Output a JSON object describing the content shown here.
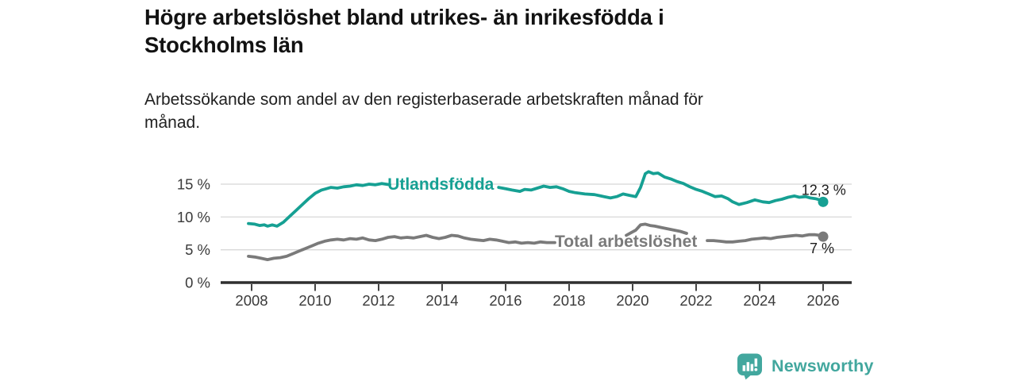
{
  "header": {
    "title": "Högre arbetslöshet bland utrikes- än inrikesfödda i\nStockholms län",
    "subtitle": "Arbetssökande som andel av den registerbaserade arbetskraften månad för\nmånad."
  },
  "footer": {
    "brand": "Newsworthy",
    "logo_icon": "bar-chart-speech-bubble-icon"
  },
  "colors": {
    "teal_series": "#16A093",
    "gray_series": "#7A7A7A",
    "logo_teal": "#42A79E",
    "gridline": "#D8D8D8",
    "axis": "#2F2F2F",
    "tick_text": "#3A3A3A",
    "end_label_text": "#1C1C1C"
  },
  "chart_data": {
    "type": "line",
    "title": "Högre arbetslöshet bland utrikes- än inrikesfödda i Stockholms län",
    "subtitle": "Arbetssökande som andel av den registerbaserade arbetskraften månad för månad.",
    "unit": "%",
    "grid": true,
    "legend_position": "inline-line-labels",
    "xlim": [
      2007.0,
      2026.9
    ],
    "ylim": [
      0,
      17.5
    ],
    "y_ticks": [
      {
        "value": 0,
        "label": "0 %"
      },
      {
        "value": 5,
        "label": "5 %"
      },
      {
        "value": 10,
        "label": "10 %"
      },
      {
        "value": 15,
        "label": "15 %"
      }
    ],
    "x_ticks": [
      {
        "value": 2008,
        "label": "2008"
      },
      {
        "value": 2010,
        "label": "2010"
      },
      {
        "value": 2012,
        "label": "2012"
      },
      {
        "value": 2014,
        "label": "2014"
      },
      {
        "value": 2016,
        "label": "2016"
      },
      {
        "value": 2018,
        "label": "2018"
      },
      {
        "value": 2020,
        "label": "2020"
      },
      {
        "value": 2022,
        "label": "2022"
      },
      {
        "value": 2024,
        "label": "2024"
      },
      {
        "value": 2026,
        "label": "2026"
      }
    ],
    "series": [
      {
        "id": "utlandsfodda",
        "name": "Utlandsfödda",
        "color": "#16A093",
        "line_label": {
          "text": "Utlandsfödda",
          "x": 2012.28,
          "value": 15.05
        },
        "end_dot": {
          "x": 2026.0,
          "value": 12.3
        },
        "end_label": {
          "text": "12,3 %",
          "x": 2026.72,
          "value": 14.1
        },
        "segments": [
          [
            [
              2007.9,
              9.0
            ],
            [
              2008.1,
              8.9
            ],
            [
              2008.25,
              8.7
            ],
            [
              2008.4,
              8.8
            ],
            [
              2008.5,
              8.6
            ],
            [
              2008.65,
              8.8
            ],
            [
              2008.8,
              8.6
            ],
            [
              2009.0,
              9.2
            ],
            [
              2009.2,
              10.1
            ],
            [
              2009.4,
              11.0
            ],
            [
              2009.6,
              11.9
            ],
            [
              2009.8,
              12.8
            ],
            [
              2010.0,
              13.6
            ],
            [
              2010.2,
              14.1
            ],
            [
              2010.35,
              14.3
            ],
            [
              2010.5,
              14.5
            ],
            [
              2010.7,
              14.4
            ],
            [
              2010.9,
              14.6
            ],
            [
              2011.1,
              14.7
            ],
            [
              2011.3,
              14.9
            ],
            [
              2011.5,
              14.8
            ],
            [
              2011.7,
              15.0
            ],
            [
              2011.9,
              14.9
            ],
            [
              2012.1,
              15.1
            ],
            [
              2012.35,
              14.9
            ]
          ],
          [
            [
              2015.78,
              14.5
            ],
            [
              2016.0,
              14.3
            ],
            [
              2016.2,
              14.1
            ],
            [
              2016.45,
              13.9
            ],
            [
              2016.6,
              14.2
            ],
            [
              2016.8,
              14.1
            ],
            [
              2017.0,
              14.4
            ],
            [
              2017.2,
              14.7
            ],
            [
              2017.4,
              14.5
            ],
            [
              2017.6,
              14.6
            ],
            [
              2017.8,
              14.3
            ],
            [
              2018.0,
              13.9
            ],
            [
              2018.2,
              13.7
            ],
            [
              2018.5,
              13.5
            ],
            [
              2018.8,
              13.4
            ],
            [
              2019.0,
              13.2
            ],
            [
              2019.3,
              12.9
            ],
            [
              2019.5,
              13.1
            ],
            [
              2019.7,
              13.5
            ],
            [
              2019.9,
              13.3
            ],
            [
              2020.1,
              13.1
            ],
            [
              2020.25,
              14.5
            ],
            [
              2020.4,
              16.6
            ],
            [
              2020.5,
              16.9
            ],
            [
              2020.65,
              16.6
            ],
            [
              2020.8,
              16.7
            ],
            [
              2021.0,
              16.1
            ],
            [
              2021.2,
              15.8
            ],
            [
              2021.4,
              15.4
            ],
            [
              2021.6,
              15.1
            ],
            [
              2021.8,
              14.6
            ],
            [
              2022.0,
              14.2
            ],
            [
              2022.2,
              13.9
            ],
            [
              2022.4,
              13.5
            ],
            [
              2022.6,
              13.1
            ],
            [
              2022.8,
              13.2
            ],
            [
              2023.0,
              12.8
            ],
            [
              2023.15,
              12.3
            ],
            [
              2023.35,
              11.9
            ],
            [
              2023.6,
              12.2
            ],
            [
              2023.85,
              12.6
            ],
            [
              2024.1,
              12.3
            ],
            [
              2024.3,
              12.2
            ],
            [
              2024.5,
              12.5
            ],
            [
              2024.7,
              12.7
            ],
            [
              2024.9,
              13.0
            ],
            [
              2025.1,
              13.2
            ],
            [
              2025.25,
              13.0
            ],
            [
              2025.45,
              13.1
            ],
            [
              2025.6,
              12.9
            ],
            [
              2025.75,
              12.8
            ],
            [
              2025.9,
              12.6
            ],
            [
              2026.0,
              12.3
            ]
          ]
        ]
      },
      {
        "id": "total",
        "name": "Total arbetslöshet",
        "color": "#7A7A7A",
        "line_label": {
          "text": "Total arbetslöshet",
          "x": 2017.55,
          "value": 6.35
        },
        "end_dot": {
          "x": 2026.0,
          "value": 7.0
        },
        "end_label": {
          "text": "7 %",
          "x": 2026.35,
          "value": 5.2
        },
        "segments": [
          [
            [
              2007.9,
              4.0
            ],
            [
              2008.1,
              3.9
            ],
            [
              2008.3,
              3.7
            ],
            [
              2008.5,
              3.5
            ],
            [
              2008.7,
              3.7
            ],
            [
              2008.9,
              3.8
            ],
            [
              2009.1,
              4.0
            ],
            [
              2009.3,
              4.4
            ],
            [
              2009.5,
              4.8
            ],
            [
              2009.7,
              5.2
            ],
            [
              2009.9,
              5.6
            ],
            [
              2010.1,
              6.0
            ],
            [
              2010.3,
              6.3
            ],
            [
              2010.5,
              6.5
            ],
            [
              2010.7,
              6.6
            ],
            [
              2010.9,
              6.5
            ],
            [
              2011.1,
              6.7
            ],
            [
              2011.3,
              6.6
            ],
            [
              2011.5,
              6.8
            ],
            [
              2011.7,
              6.5
            ],
            [
              2011.9,
              6.4
            ],
            [
              2012.1,
              6.6
            ],
            [
              2012.3,
              6.9
            ],
            [
              2012.5,
              7.0
            ],
            [
              2012.7,
              6.8
            ],
            [
              2012.9,
              6.9
            ],
            [
              2013.1,
              6.8
            ],
            [
              2013.3,
              7.0
            ],
            [
              2013.5,
              7.2
            ],
            [
              2013.7,
              6.9
            ],
            [
              2013.9,
              6.7
            ],
            [
              2014.1,
              6.9
            ],
            [
              2014.3,
              7.2
            ],
            [
              2014.5,
              7.1
            ],
            [
              2014.7,
              6.8
            ],
            [
              2014.9,
              6.6
            ],
            [
              2015.1,
              6.5
            ],
            [
              2015.3,
              6.4
            ],
            [
              2015.5,
              6.6
            ],
            [
              2015.7,
              6.5
            ],
            [
              2015.9,
              6.3
            ],
            [
              2016.1,
              6.1
            ],
            [
              2016.3,
              6.2
            ],
            [
              2016.5,
              6.0
            ],
            [
              2016.7,
              6.1
            ],
            [
              2016.9,
              6.0
            ],
            [
              2017.1,
              6.2
            ],
            [
              2017.3,
              6.1
            ],
            [
              2017.55,
              6.1
            ]
          ],
          [
            [
              2019.8,
              7.2
            ],
            [
              2019.95,
              7.6
            ],
            [
              2020.1,
              8.0
            ],
            [
              2020.25,
              8.8
            ],
            [
              2020.4,
              8.9
            ],
            [
              2020.55,
              8.7
            ],
            [
              2020.7,
              8.6
            ],
            [
              2020.9,
              8.4
            ],
            [
              2021.1,
              8.2
            ],
            [
              2021.3,
              8.0
            ],
            [
              2021.5,
              7.8
            ],
            [
              2021.7,
              7.5
            ]
          ],
          [
            [
              2022.35,
              6.4
            ],
            [
              2022.55,
              6.4
            ],
            [
              2022.75,
              6.3
            ],
            [
              2022.95,
              6.2
            ],
            [
              2023.15,
              6.2
            ],
            [
              2023.35,
              6.3
            ],
            [
              2023.55,
              6.4
            ],
            [
              2023.75,
              6.6
            ],
            [
              2023.95,
              6.7
            ],
            [
              2024.15,
              6.8
            ],
            [
              2024.35,
              6.7
            ],
            [
              2024.55,
              6.9
            ],
            [
              2024.75,
              7.0
            ],
            [
              2024.95,
              7.1
            ],
            [
              2025.15,
              7.2
            ],
            [
              2025.35,
              7.1
            ],
            [
              2025.55,
              7.3
            ],
            [
              2025.75,
              7.3
            ],
            [
              2025.9,
              7.2
            ],
            [
              2026.0,
              7.0
            ]
          ]
        ]
      }
    ]
  }
}
